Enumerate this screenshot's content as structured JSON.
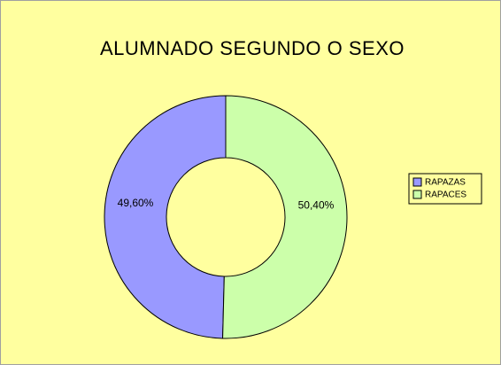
{
  "chart_data": {
    "type": "donut",
    "title": "ALUMNADO SEGUNDO O SEXO",
    "categories": [
      "RAPAZAS",
      "RAPACES"
    ],
    "values": [
      49.6,
      50.4
    ],
    "value_labels": [
      "49,60%",
      "50,40%"
    ],
    "colors": [
      "#9999ff",
      "#ccffaa"
    ],
    "legend": "right"
  }
}
